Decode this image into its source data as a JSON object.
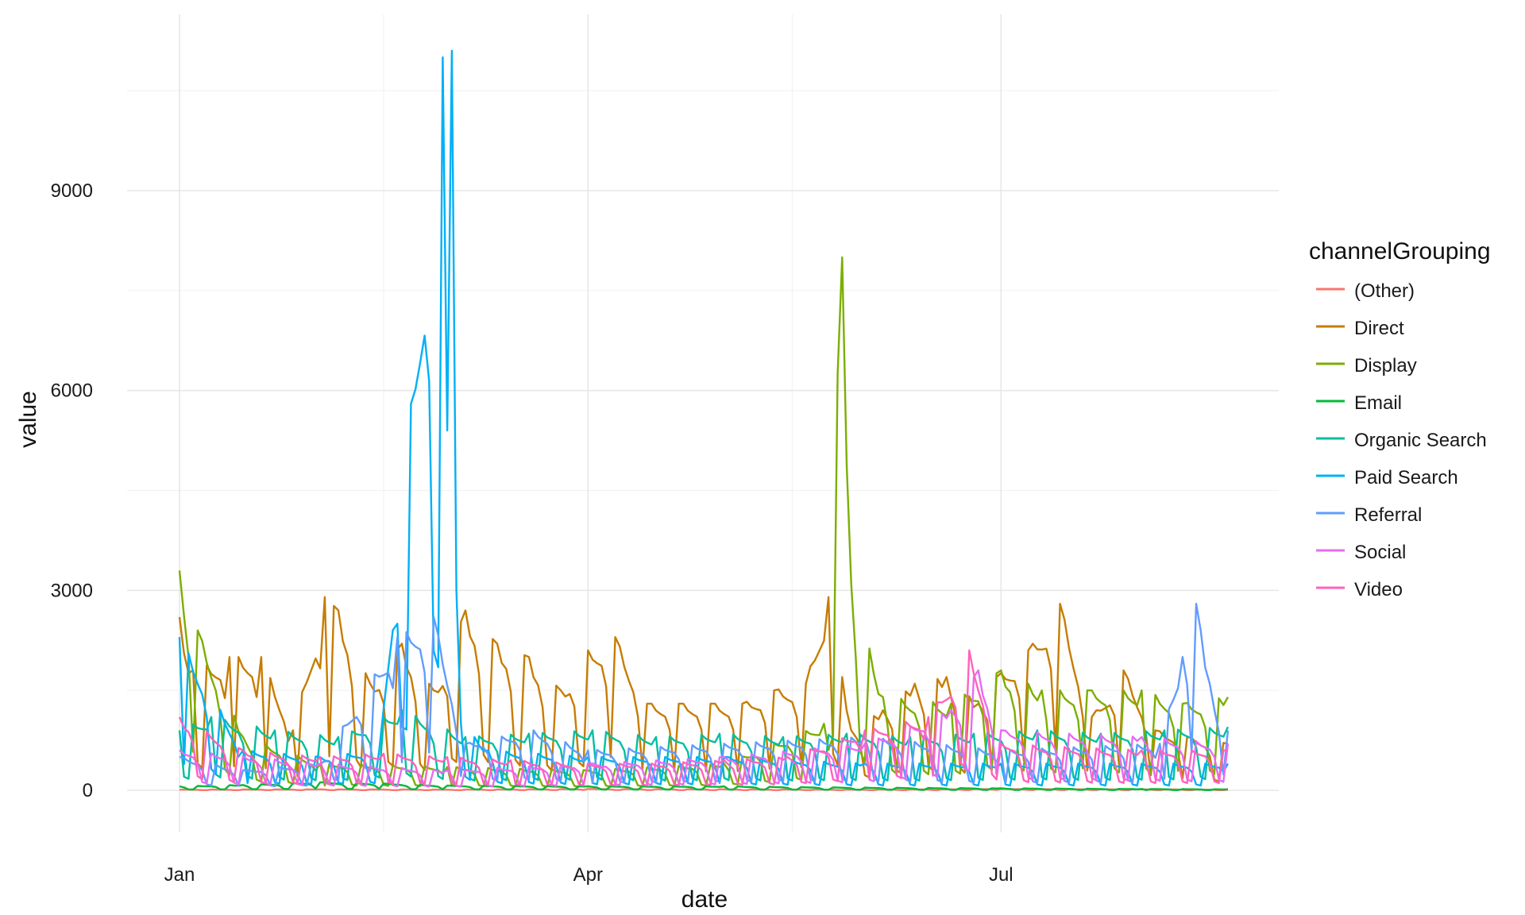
{
  "chart_data": {
    "type": "line",
    "title": "",
    "xlabel": "date",
    "ylabel": "value",
    "x_range": [
      "2017-01-01",
      "2017-08-20"
    ],
    "ylim": [
      -500,
      11500
    ],
    "grid": true,
    "legend_title": "channelGrouping",
    "legend_position": "right",
    "x_ticks": [
      {
        "date": "2017-01-01",
        "label": "Jan"
      },
      {
        "date": "2017-04-01",
        "label": "Apr"
      },
      {
        "date": "2017-07-01",
        "label": "Jul"
      }
    ],
    "y_ticks": [
      {
        "value": 0,
        "label": "0"
      },
      {
        "value": 3000,
        "label": "3000"
      },
      {
        "value": 6000,
        "label": "6000"
      },
      {
        "value": 9000,
        "label": "9000"
      }
    ],
    "series": [
      {
        "name": "(Other)",
        "color": "#F8766D",
        "dates": [
          "2017-01-01",
          "2017-02-01",
          "2017-03-01",
          "2017-04-01",
          "2017-05-01",
          "2017-06-01",
          "2017-07-01",
          "2017-08-01",
          "2017-08-20"
        ],
        "values": [
          10,
          15,
          10,
          20,
          15,
          10,
          20,
          15,
          10
        ]
      },
      {
        "name": "Direct",
        "color": "#C77C00",
        "dates": [
          "2017-01-01",
          "2017-01-04",
          "2017-01-12",
          "2017-01-19",
          "2017-01-26",
          "2017-02-02",
          "2017-02-05",
          "2017-02-12",
          "2017-02-19",
          "2017-02-26",
          "2017-03-05",
          "2017-03-12",
          "2017-03-19",
          "2017-03-26",
          "2017-04-01",
          "2017-04-07",
          "2017-04-14",
          "2017-04-21",
          "2017-04-28",
          "2017-05-05",
          "2017-05-12",
          "2017-05-19",
          "2017-05-24",
          "2017-05-29",
          "2017-06-05",
          "2017-06-12",
          "2017-06-19",
          "2017-06-26",
          "2017-06-30",
          "2017-07-07",
          "2017-07-14",
          "2017-07-21",
          "2017-07-28",
          "2017-08-04",
          "2017-08-11",
          "2017-08-20"
        ],
        "values": [
          2600,
          1800,
          2000,
          2000,
          900,
          2900,
          2700,
          1600,
          2200,
          1500,
          2700,
          2200,
          2000,
          1500,
          2100,
          2300,
          1300,
          1300,
          1300,
          1300,
          1500,
          1600,
          2900,
          900,
          1200,
          1600,
          1700,
          1300,
          1700,
          2100,
          2800,
          1100,
          1800,
          900,
          800,
          700
        ]
      },
      {
        "name": "Display",
        "color": "#7CAE00",
        "dates": [
          "2017-01-01",
          "2017-01-05",
          "2017-01-15",
          "2017-02-01",
          "2017-03-01",
          "2017-04-01",
          "2017-05-01",
          "2017-05-23",
          "2017-05-27",
          "2017-05-29",
          "2017-06-05",
          "2017-06-20",
          "2017-07-01",
          "2017-07-10",
          "2017-07-20",
          "2017-08-01",
          "2017-08-10",
          "2017-08-20"
        ],
        "values": [
          3300,
          2400,
          800,
          400,
          350,
          300,
          400,
          1000,
          8000,
          3100,
          1400,
          1300,
          1800,
          1500,
          1500,
          1500,
          1300,
          1400
        ]
      },
      {
        "name": "Email",
        "color": "#00BA38",
        "dates": [
          "2017-01-01",
          "2017-01-15",
          "2017-02-01",
          "2017-02-15",
          "2017-03-01",
          "2017-04-01",
          "2017-05-01",
          "2017-06-01",
          "2017-07-01",
          "2017-08-01",
          "2017-08-20"
        ],
        "values": [
          60,
          80,
          120,
          100,
          70,
          60,
          60,
          40,
          30,
          20,
          15
        ]
      },
      {
        "name": "Organic Search",
        "color": "#00BFA0",
        "dates": [
          "2017-01-01",
          "2017-01-08",
          "2017-01-22",
          "2017-02-05",
          "2017-02-19",
          "2017-03-05",
          "2017-03-19",
          "2017-04-02",
          "2017-04-16",
          "2017-04-30",
          "2017-05-14",
          "2017-05-28",
          "2017-06-11",
          "2017-06-25",
          "2017-07-09",
          "2017-07-23",
          "2017-08-06",
          "2017-08-20"
        ],
        "values": [
          900,
          1100,
          900,
          800,
          1200,
          800,
          850,
          900,
          800,
          850,
          800,
          850,
          800,
          850,
          900,
          850,
          900,
          950
        ]
      },
      {
        "name": "Paid Search",
        "color": "#00B0F6",
        "dates": [
          "2017-01-01",
          "2017-01-15",
          "2017-02-01",
          "2017-02-14",
          "2017-02-28",
          "2017-03-01",
          "2017-03-02",
          "2017-03-03",
          "2017-03-04",
          "2017-03-10",
          "2017-04-01",
          "2017-05-01",
          "2017-06-01",
          "2017-07-01",
          "2017-08-01",
          "2017-08-20"
        ],
        "values": [
          2300,
          600,
          500,
          600,
          11000,
          5400,
          11100,
          3000,
          1000,
          600,
          500,
          500,
          400,
          400,
          400,
          400
        ]
      },
      {
        "name": "Referral",
        "color": "#619CFF",
        "dates": [
          "2017-01-01",
          "2017-01-15",
          "2017-02-01",
          "2017-02-18",
          "2017-02-26",
          "2017-03-05",
          "2017-03-20",
          "2017-04-01",
          "2017-05-01",
          "2017-06-01",
          "2017-07-01",
          "2017-08-05",
          "2017-08-10",
          "2017-08-13",
          "2017-08-16",
          "2017-08-20"
        ],
        "values": [
          500,
          300,
          400,
          2300,
          2600,
          700,
          900,
          600,
          700,
          800,
          600,
          700,
          2000,
          2800,
          1600,
          900
        ]
      },
      {
        "name": "Social",
        "color": "#E76BF3",
        "dates": [
          "2017-01-01",
          "2017-02-01",
          "2017-03-01",
          "2017-04-01",
          "2017-05-01",
          "2017-06-01",
          "2017-06-20",
          "2017-06-26",
          "2017-07-01",
          "2017-08-01",
          "2017-08-20"
        ],
        "values": [
          600,
          400,
          300,
          400,
          500,
          700,
          1200,
          1800,
          900,
          800,
          700
        ]
      },
      {
        "name": "Video",
        "color": "#FF62BC",
        "dates": [
          "2017-01-01",
          "2017-01-15",
          "2017-02-01",
          "2017-02-15",
          "2017-03-01",
          "2017-03-15",
          "2017-04-01",
          "2017-04-15",
          "2017-05-01",
          "2017-05-15",
          "2017-06-01",
          "2017-06-15",
          "2017-06-24",
          "2017-07-01",
          "2017-07-15",
          "2017-08-01",
          "2017-08-20"
        ],
        "values": [
          1100,
          600,
          500,
          550,
          500,
          450,
          400,
          400,
          450,
          500,
          900,
          1100,
          2100,
          700,
          650,
          600,
          600
        ]
      }
    ]
  }
}
